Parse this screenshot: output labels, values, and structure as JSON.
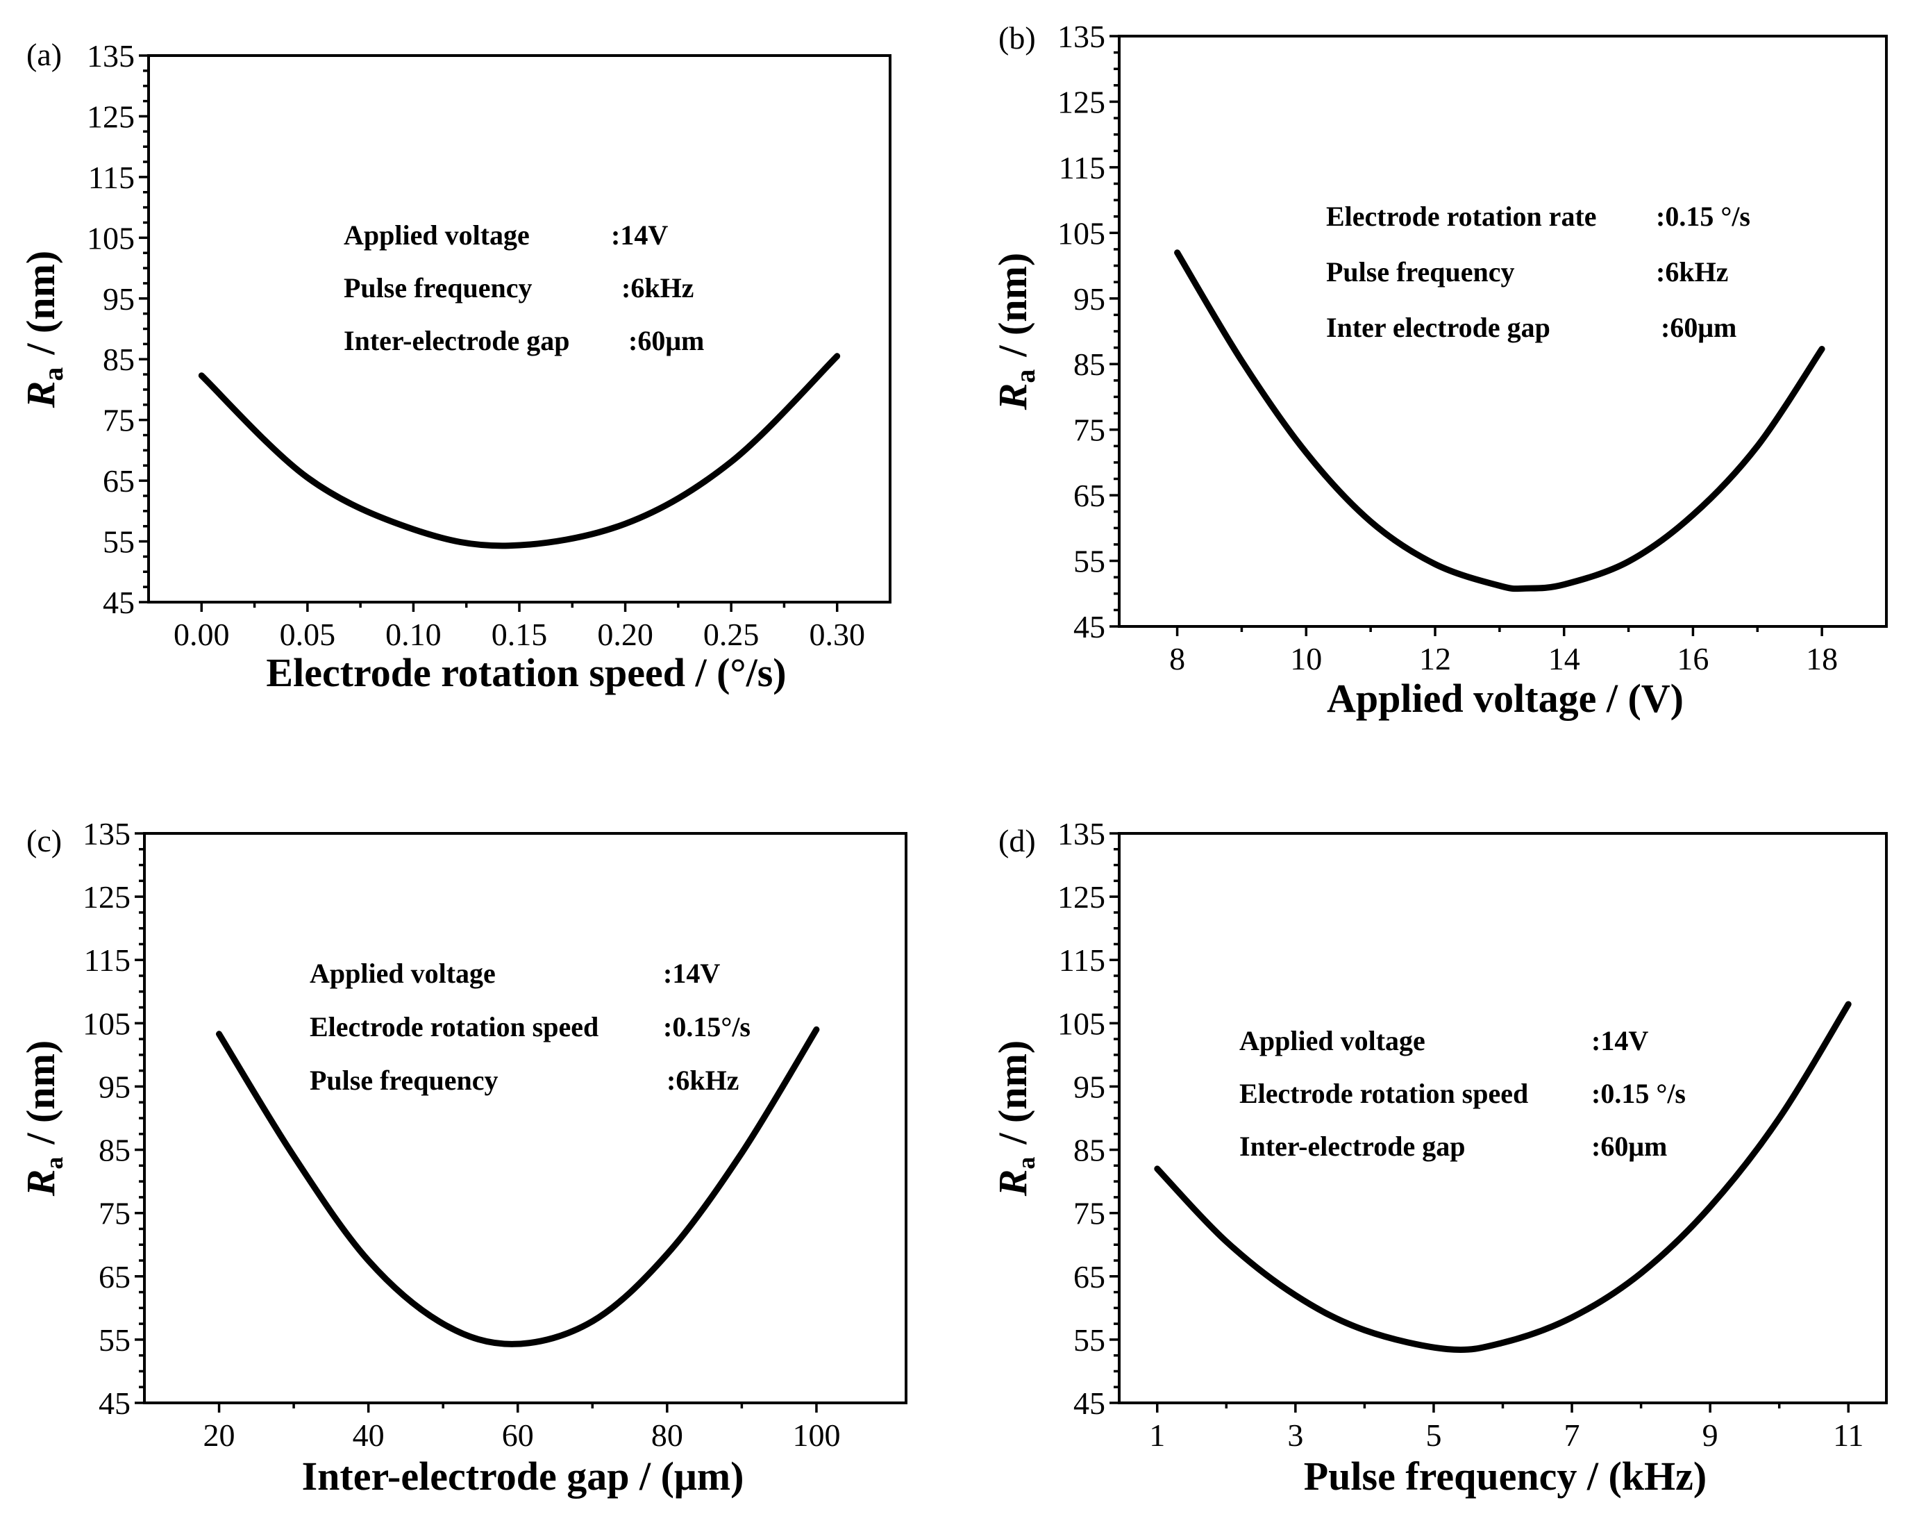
{
  "chart_data": [
    {
      "type": "line",
      "panel_label": "(a)",
      "xlabel": "Electrode rotation speed  /  (°/s)",
      "ylabel_main": "R",
      "ylabel_sub": "a",
      "ylabel_units": "/  (nm)",
      "xlim": [
        -0.025,
        0.325
      ],
      "ylim": [
        45,
        135
      ],
      "xticks": [
        0.0,
        0.05,
        0.1,
        0.15,
        0.2,
        0.25,
        0.3
      ],
      "xtick_labels": [
        "0.00",
        "0.05",
        "0.10",
        "0.15",
        "0.20",
        "0.25",
        "0.30"
      ],
      "yticks": [
        45,
        55,
        65,
        75,
        85,
        95,
        105,
        115,
        125,
        135
      ],
      "ytick_labels": [
        "45",
        "55",
        "65",
        "75",
        "85",
        "95",
        "105",
        "115",
        "125",
        "135"
      ],
      "series": [
        {
          "name": "Ra",
          "x": [
            0.0,
            0.05,
            0.1,
            0.145,
            0.2,
            0.25,
            0.3
          ],
          "y": [
            82.3,
            65.5,
            57.0,
            54.3,
            57.9,
            68.1,
            85.5
          ]
        }
      ],
      "annotations": [
        {
          "label": "Applied voltage",
          "value": ":14V"
        },
        {
          "label": "Pulse frequency",
          "value": ":6kHz"
        },
        {
          "label": "Inter-electrode gap",
          "value": ":60μm"
        }
      ]
    },
    {
      "type": "line",
      "panel_label": "(b)",
      "xlabel": "Applied voltage  /  (V)",
      "ylabel_main": "R",
      "ylabel_sub": "a",
      "ylabel_units": "/  (nm)",
      "xlim": [
        7.1,
        19.0
      ],
      "ylim": [
        45,
        135
      ],
      "xticks": [
        8,
        10,
        12,
        14,
        16,
        18
      ],
      "xtick_labels": [
        "8",
        "10",
        "12",
        "14",
        "16",
        "18"
      ],
      "yticks": [
        45,
        55,
        65,
        75,
        85,
        95,
        105,
        115,
        125,
        135
      ],
      "ytick_labels": [
        "45",
        "55",
        "65",
        "75",
        "85",
        "95",
        "105",
        "115",
        "125",
        "135"
      ],
      "series": [
        {
          "name": "Ra",
          "x": [
            8,
            9,
            10,
            11,
            12,
            13,
            13.4,
            14,
            15,
            16,
            17,
            18
          ],
          "y": [
            102.0,
            85.5,
            71.5,
            61.0,
            54.5,
            51.2,
            50.8,
            51.4,
            54.9,
            62.0,
            72.5,
            87.3
          ]
        }
      ],
      "annotations": [
        {
          "label": "Electrode rotation rate",
          "value": ":0.15 °/s"
        },
        {
          "label": "Pulse frequency",
          "value": ":6kHz"
        },
        {
          "label": "Inter electrode gap",
          "value": ":60μm"
        }
      ]
    },
    {
      "type": "line",
      "panel_label": "(c)",
      "xlabel": "Inter-electrode gap  /  (μm)",
      "ylabel_main": "R",
      "ylabel_sub": "a",
      "ylabel_units": "/  (nm)",
      "xlim": [
        10,
        112
      ],
      "ylim": [
        45,
        135
      ],
      "xticks": [
        20,
        40,
        60,
        80,
        100
      ],
      "xtick_labels": [
        "20",
        "40",
        "60",
        "80",
        "100"
      ],
      "yticks": [
        45,
        55,
        65,
        75,
        85,
        95,
        105,
        115,
        125,
        135
      ],
      "ytick_labels": [
        "45",
        "55",
        "65",
        "75",
        "85",
        "95",
        "105",
        "115",
        "125",
        "135"
      ],
      "series": [
        {
          "name": "Ra",
          "x": [
            20,
            30,
            40,
            50,
            59.5,
            70,
            80,
            90,
            100
          ],
          "y": [
            103.3,
            84.0,
            67.5,
            57.5,
            54.3,
            57.9,
            68.5,
            84.5,
            104.0
          ]
        }
      ],
      "annotations": [
        {
          "label": "Applied voltage",
          "value": ":14V"
        },
        {
          "label": "Electrode rotation speed",
          "value": ":0.15°/s"
        },
        {
          "label": "Pulse frequency",
          "value": ":6kHz"
        }
      ]
    },
    {
      "type": "line",
      "panel_label": "(d)",
      "xlabel": "Pulse frequency  /  (kHz)",
      "ylabel_main": "R",
      "ylabel_sub": "a",
      "ylabel_units": "/  (nm)",
      "xlim": [
        0.45,
        11.55
      ],
      "ylim": [
        45,
        135
      ],
      "xticks": [
        1,
        3,
        5,
        7,
        9,
        11
      ],
      "xtick_labels": [
        "1",
        "3",
        "5",
        "7",
        "9",
        "11"
      ],
      "yticks": [
        45,
        55,
        65,
        75,
        85,
        95,
        105,
        115,
        125,
        135
      ],
      "ytick_labels": [
        "45",
        "55",
        "65",
        "75",
        "85",
        "95",
        "105",
        "115",
        "125",
        "135"
      ],
      "series": [
        {
          "name": "Ra",
          "x": [
            1,
            2,
            3,
            4,
            5.2,
            6,
            7,
            8,
            9,
            10,
            11
          ],
          "y": [
            82.0,
            70.5,
            62.0,
            56.5,
            53.5,
            54.5,
            58.5,
            65.5,
            76.0,
            90.0,
            108.0
          ]
        }
      ],
      "annotations": [
        {
          "label": "Applied voltage",
          "value": ":14V"
        },
        {
          "label": "Electrode rotation speed",
          "value": ":0.15 °/s"
        },
        {
          "label": "Inter-electrode gap",
          "value": ":60μm"
        }
      ]
    }
  ]
}
